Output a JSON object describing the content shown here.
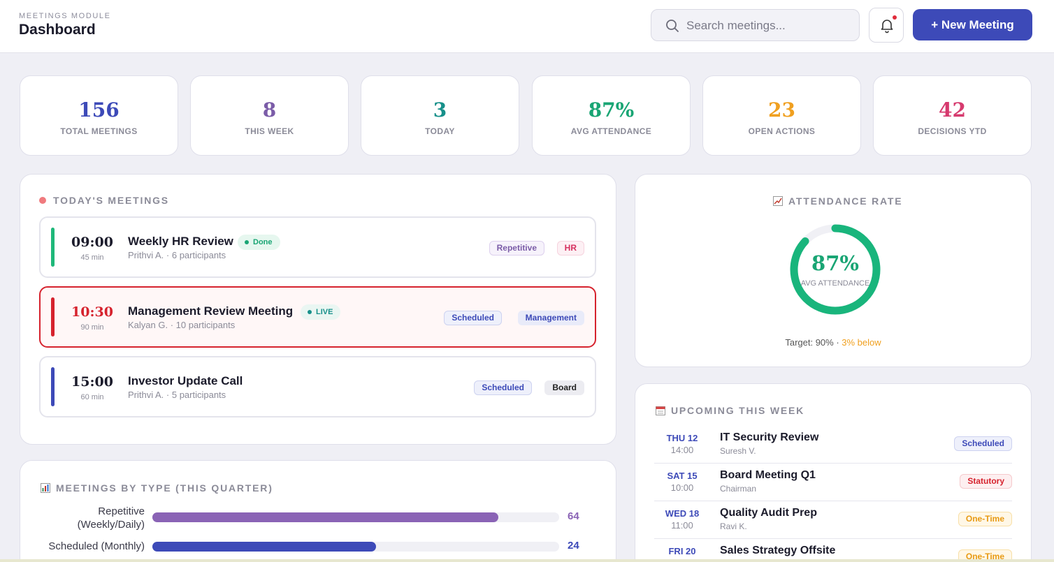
{
  "header": {
    "module_label": "MEETINGS MODULE",
    "title": "Dashboard",
    "search_placeholder": "Search meetings...",
    "new_button_label": "+ New Meeting",
    "notification_dot": true
  },
  "stats": [
    {
      "value": "156",
      "label": "TOTAL MEETINGS",
      "color": "#3d4ab8"
    },
    {
      "value": "8",
      "label": "THIS WEEK",
      "color": "#7b5ca8"
    },
    {
      "value": "3",
      "label": "TODAY",
      "color": "#17908a"
    },
    {
      "value": "87%",
      "label": "AVG ATTENDANCE",
      "color": "#19a574"
    },
    {
      "value": "23",
      "label": "OPEN ACTIONS",
      "color": "#f0a020"
    },
    {
      "value": "42",
      "label": "DECISIONS YTD",
      "color": "#d63a6e"
    }
  ],
  "today": {
    "title": "TODAY'S MEETINGS",
    "meetings": [
      {
        "time": "09:00",
        "duration": "45 min",
        "title": "Weekly HR Review",
        "meta": "Prithvi A. · 6 participants",
        "status": "Done",
        "tags": [
          "Repetitive",
          "HR"
        ],
        "live": false,
        "time_color": "#1b1b2b",
        "bar_color": "#1fb87a"
      },
      {
        "time": "10:30",
        "duration": "90 min",
        "title": "Management Review Meeting",
        "meta": "Kalyan G. · 10 participants",
        "status": "LIVE",
        "tags": [
          "Scheduled",
          "Management"
        ],
        "live": true,
        "time_color": "#d6232e",
        "bar_color": "#d6232e"
      },
      {
        "time": "15:00",
        "duration": "60 min",
        "title": "Investor Update Call",
        "meta": "Prithvi A. · 5 participants",
        "status": "",
        "tags": [
          "Scheduled",
          "Board"
        ],
        "live": false,
        "time_color": "#1b1b2b",
        "bar_color": "#3d4ab8"
      }
    ]
  },
  "attendance": {
    "title": "ATTENDANCE RATE",
    "value": "87%",
    "value_fraction": 0.87,
    "sub": "AVG ATTENDANCE",
    "target_text": "Target: 90% · ",
    "below_text": "3% below",
    "ring_color": "#19b57c"
  },
  "upcoming": {
    "title": "UPCOMING THIS WEEK",
    "items": [
      {
        "day": "THU 12",
        "time": "14:00",
        "title": "IT Security Review",
        "who": "Suresh V.",
        "tag": "Scheduled"
      },
      {
        "day": "SAT 15",
        "time": "10:00",
        "title": "Board Meeting Q1",
        "who": "Chairman",
        "tag": "Statutory"
      },
      {
        "day": "WED 18",
        "time": "11:00",
        "title": "Quality Audit Prep",
        "who": "Ravi K.",
        "tag": "One-Time"
      },
      {
        "day": "FRI 20",
        "time": "",
        "title": "Sales Strategy Offsite",
        "who": "",
        "tag": "One-Time"
      }
    ]
  },
  "by_type": {
    "title": "MEETINGS BY TYPE (THIS QUARTER)",
    "rows": [
      {
        "label_lines": [
          "Repetitive",
          "(Weekly/Daily)"
        ],
        "value": 64,
        "fraction": 0.85,
        "color": "#8a63b5"
      },
      {
        "label_lines": [
          "Scheduled (Monthly)"
        ],
        "value": 24,
        "fraction": 0.55,
        "color": "#3d4ab8"
      }
    ]
  }
}
